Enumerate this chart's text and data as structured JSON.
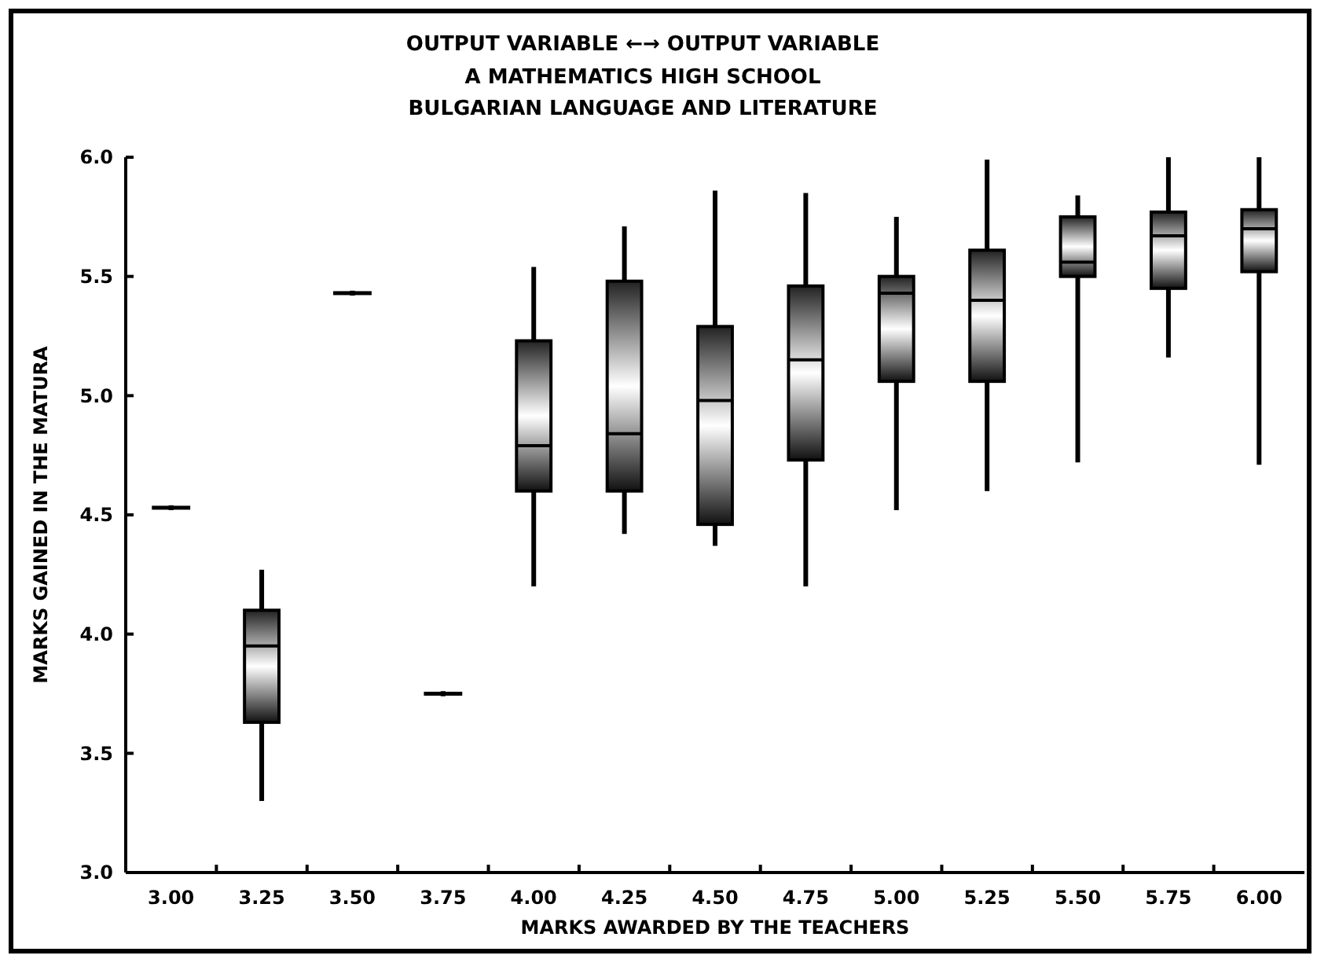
{
  "chart_data": {
    "type": "box",
    "title": "OUTPUT VARIABLE ←→ OUTPUT VARIABLE",
    "subtitle": "A MATHEMATICS HIGH SCHOOL\nBULGARIAN LANGUAGE AND LITERATURE",
    "xlabel": "MARKS AWARDED BY THE TEACHERS",
    "ylabel": "MARKS GAINED IN THE MATURA",
    "categories": [
      "3.00",
      "3.25",
      "3.50",
      "3.75",
      "4.00",
      "4.25",
      "4.50",
      "4.75",
      "5.00",
      "5.25",
      "5.50",
      "5.75",
      "6.00"
    ],
    "boxes": [
      {
        "low": 4.53,
        "q1": 4.53,
        "median": 4.53,
        "q3": 4.53,
        "high": 4.53
      },
      {
        "low": 3.31,
        "q1": 3.63,
        "median": 3.95,
        "q3": 4.1,
        "high": 4.26
      },
      {
        "low": 5.43,
        "q1": 5.43,
        "median": 5.43,
        "q3": 5.43,
        "high": 5.43
      },
      {
        "low": 3.75,
        "q1": 3.75,
        "median": 3.75,
        "q3": 3.75,
        "high": 3.75
      },
      {
        "low": 4.21,
        "q1": 4.6,
        "median": 4.79,
        "q3": 5.23,
        "high": 5.53
      },
      {
        "low": 4.43,
        "q1": 4.6,
        "median": 4.84,
        "q3": 5.48,
        "high": 5.7
      },
      {
        "low": 4.38,
        "q1": 4.46,
        "median": 4.98,
        "q3": 5.29,
        "high": 5.85
      },
      {
        "low": 4.21,
        "q1": 4.73,
        "median": 5.15,
        "q3": 5.46,
        "high": 5.84
      },
      {
        "low": 4.53,
        "q1": 5.06,
        "median": 5.43,
        "q3": 5.5,
        "high": 5.74
      },
      {
        "low": 4.61,
        "q1": 5.06,
        "median": 5.4,
        "q3": 5.61,
        "high": 5.98
      },
      {
        "low": 4.73,
        "q1": 5.5,
        "median": 5.56,
        "q3": 5.75,
        "high": 5.83
      },
      {
        "low": 5.17,
        "q1": 5.45,
        "median": 5.67,
        "q3": 5.77,
        "high": 5.99
      },
      {
        "low": 4.72,
        "q1": 5.52,
        "median": 5.7,
        "q3": 5.78,
        "high": 5.99
      }
    ],
    "ylim": [
      3,
      6
    ],
    "yticks": [
      {
        "value": 3,
        "label": "3.0"
      },
      {
        "value": 3.5,
        "label": "3.5"
      },
      {
        "value": 4,
        "label": "4.0"
      },
      {
        "value": 4.5,
        "label": "4.5"
      },
      {
        "value": 5,
        "label": "5.0"
      },
      {
        "value": 5.5,
        "label": "5.5"
      },
      {
        "value": 6,
        "label": "6.0"
      }
    ],
    "grid": false
  }
}
